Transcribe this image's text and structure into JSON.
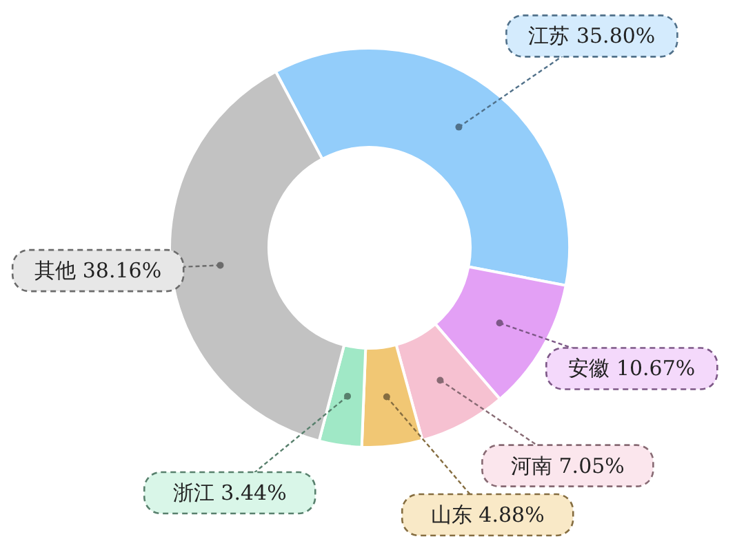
{
  "chart_data": {
    "type": "donut",
    "categories": [
      "江苏",
      "安徽",
      "河南",
      "山东",
      "浙江",
      "其他"
    ],
    "values": [
      35.8,
      10.67,
      7.05,
      4.88,
      3.44,
      38.16
    ],
    "value_labels": [
      "35.80%",
      "10.67%",
      "7.05%",
      "4.88%",
      "3.44%",
      "38.16%"
    ],
    "colors": [
      "#93cdfa",
      "#e3a0f5",
      "#f6c1d1",
      "#f1c774",
      "#a0e8c6",
      "#c2c2c2"
    ],
    "legend": false
  }
}
